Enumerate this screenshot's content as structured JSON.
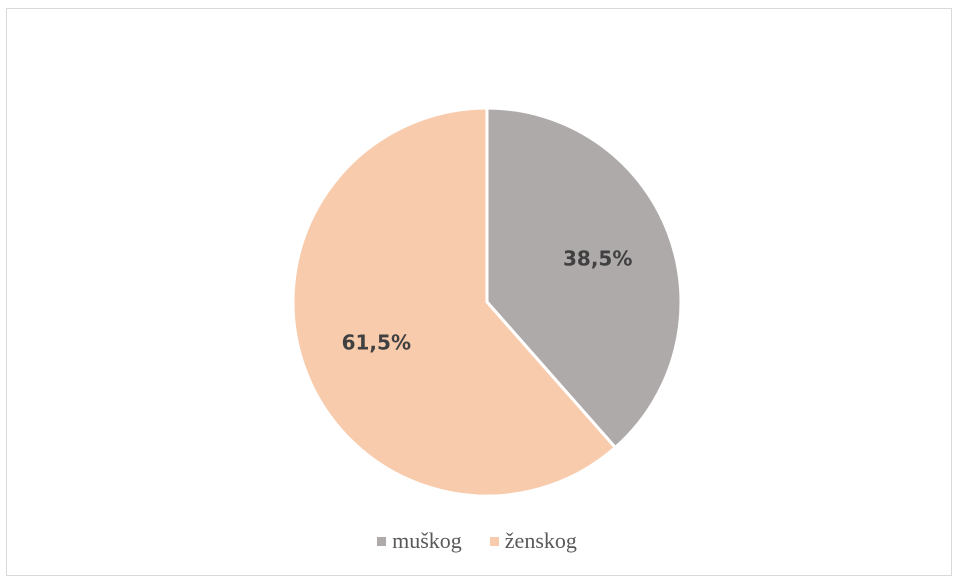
{
  "chart_data": {
    "type": "pie",
    "categories": [
      "muškog",
      "ženskog"
    ],
    "values": [
      38.5,
      61.5
    ],
    "labels": [
      "38,5%",
      "61,5%"
    ],
    "colors": [
      "#aeaaaa",
      "#f8cbad"
    ],
    "start_angle_deg": 0,
    "direction": "clockwise",
    "legend_position": "bottom",
    "title": ""
  }
}
